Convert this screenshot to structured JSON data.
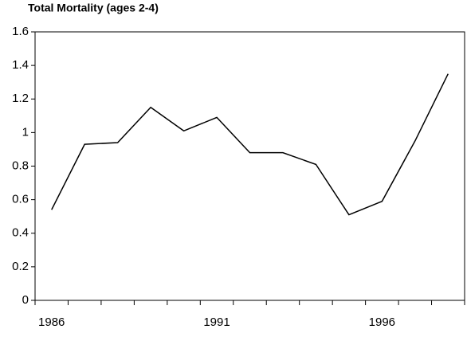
{
  "chart_data": {
    "type": "line",
    "title": "Total Mortality (ages 2-4)",
    "categories": [
      "1986",
      null,
      null,
      null,
      null,
      "1991",
      null,
      null,
      null,
      null,
      "1996",
      null,
      null
    ],
    "values": [
      0.54,
      0.93,
      0.94,
      1.15,
      1.01,
      1.09,
      0.88,
      0.88,
      0.81,
      0.51,
      0.59,
      0.95,
      1.35
    ],
    "color": "#000000",
    "ylim": [
      0,
      1.6
    ],
    "yticks": [
      0,
      0.2,
      0.4,
      0.6,
      0.8,
      1,
      1.2,
      1.4,
      1.6
    ],
    "grid": false
  }
}
